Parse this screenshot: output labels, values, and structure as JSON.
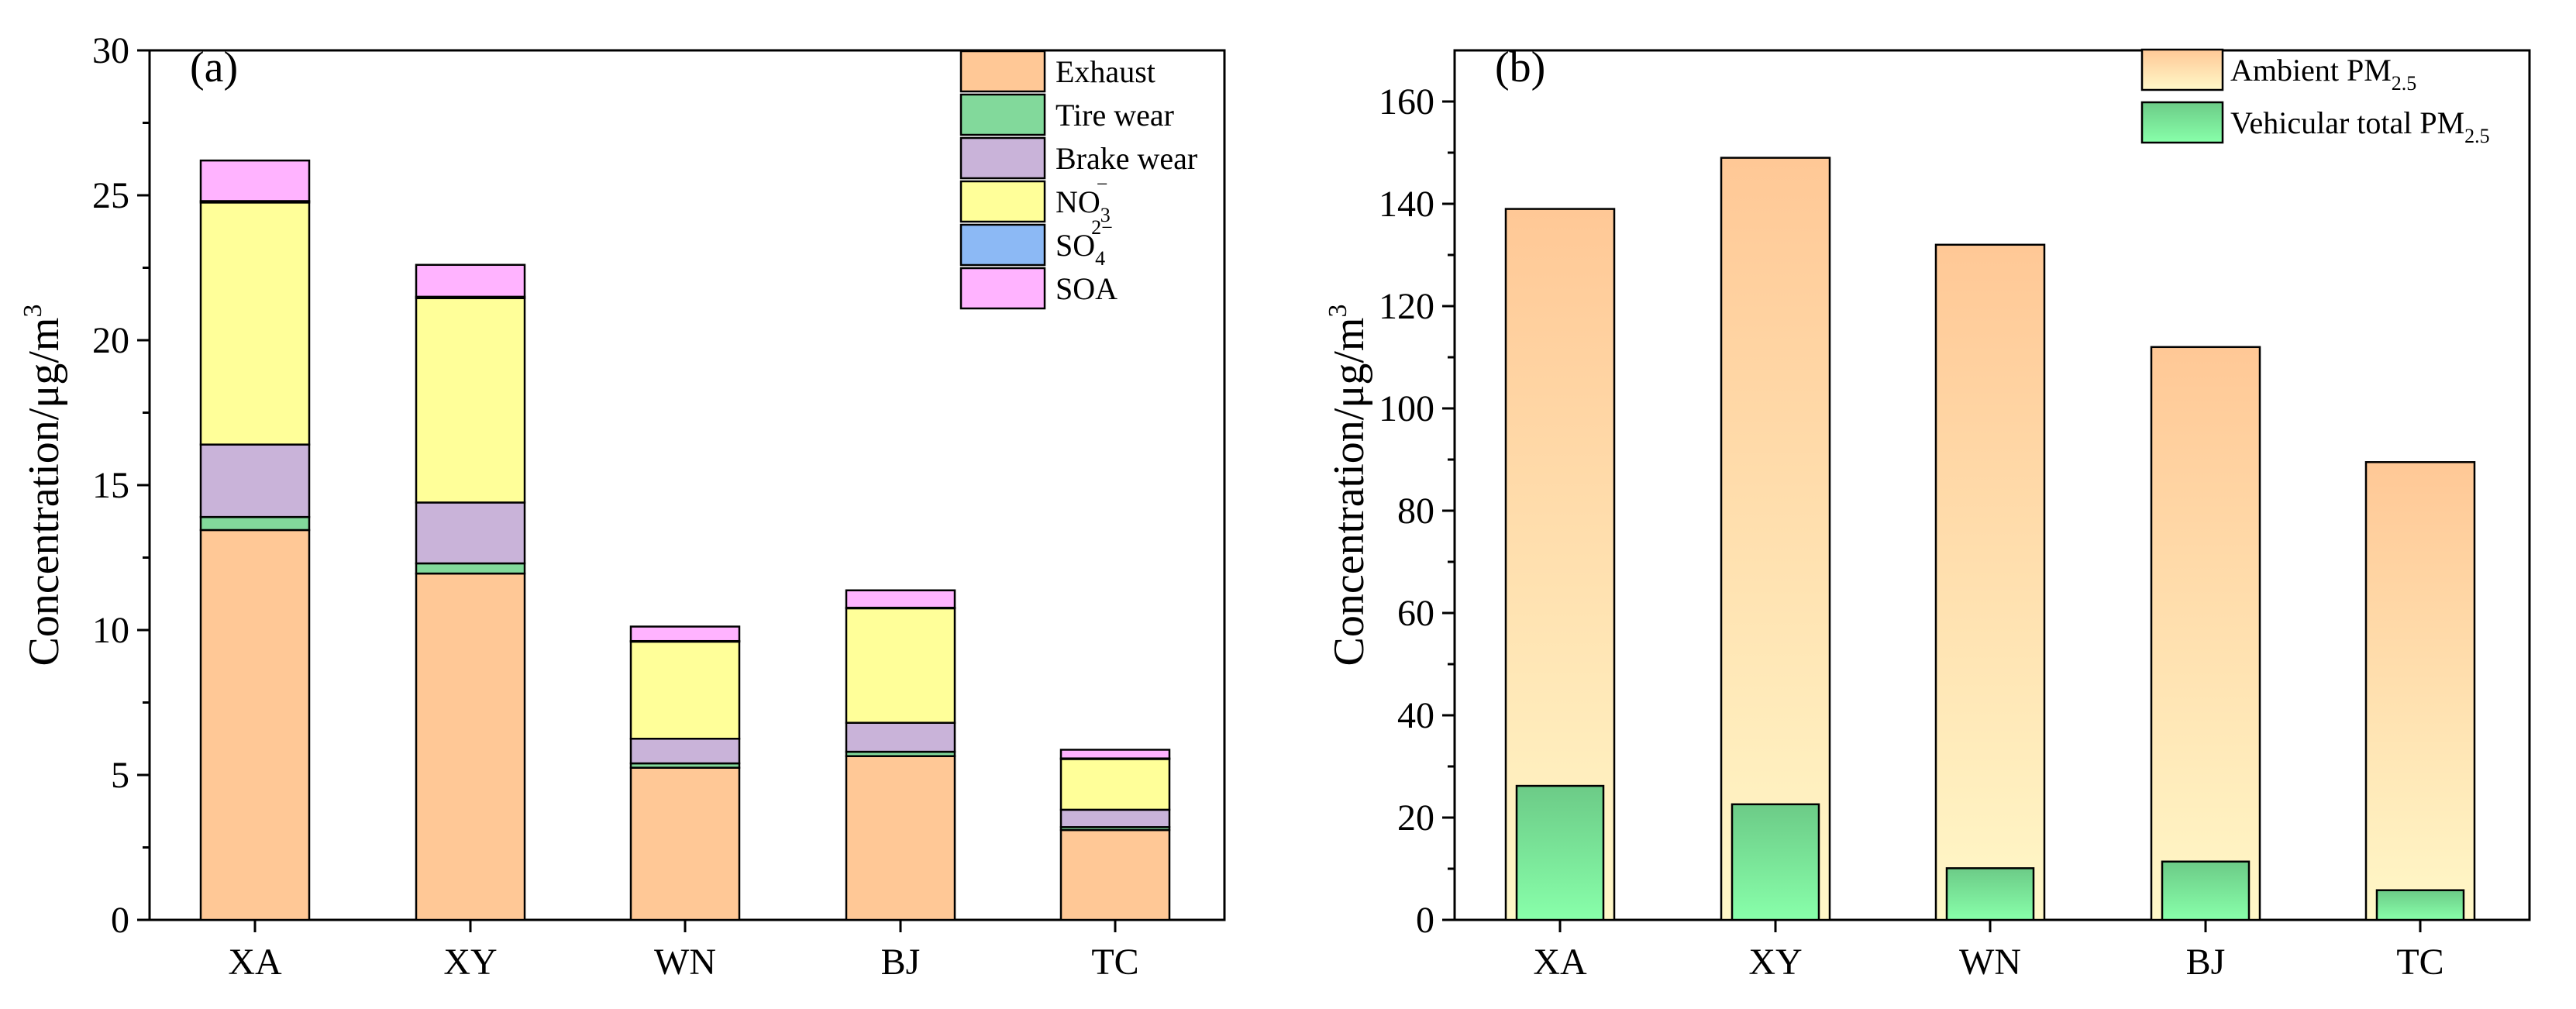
{
  "chart_data": [
    {
      "type": "bar",
      "stacked": true,
      "panel_label": "(a)",
      "categories": [
        "XA",
        "XY",
        "WN",
        "BJ",
        "TC"
      ],
      "ylabel": "Concentration/μg/m",
      "ylabel_superscript": "3",
      "ylim": [
        0,
        30
      ],
      "yticks": [
        0,
        5,
        10,
        15,
        20,
        25,
        30
      ],
      "legend_position": "top-right",
      "series": [
        {
          "name": "Exhaust",
          "label_main": "Exhaust",
          "label_sub": "",
          "label_sup": "",
          "color": "#FFC896",
          "values": [
            13.45,
            11.95,
            5.25,
            5.65,
            3.1
          ]
        },
        {
          "name": "Tire wear",
          "label_main": "Tire wear",
          "label_sub": "",
          "label_sup": "",
          "color": "#82D99B",
          "values": [
            0.45,
            0.35,
            0.15,
            0.15,
            0.1
          ]
        },
        {
          "name": "Brake wear",
          "label_main": "Brake wear",
          "label_sub": "",
          "label_sup": "",
          "color": "#C9B3D9",
          "values": [
            2.5,
            2.1,
            0.85,
            1.0,
            0.6
          ]
        },
        {
          "name": "NO3−",
          "label_main": "NO",
          "label_sub": "3",
          "label_sup": "−",
          "color": "#FFFF99",
          "values": [
            8.35,
            7.05,
            3.35,
            3.95,
            1.75
          ]
        },
        {
          "name": "SO42−",
          "label_main": "SO",
          "label_sub": "4",
          "label_sup": "2−",
          "color": "#8CB9F5",
          "values": [
            0.05,
            0.05,
            0.02,
            0.02,
            0.02
          ]
        },
        {
          "name": "SOA",
          "label_main": "SOA",
          "label_sub": "",
          "label_sup": "",
          "color": "#FFB3FF",
          "values": [
            1.4,
            1.1,
            0.5,
            0.6,
            0.3
          ]
        }
      ]
    },
    {
      "type": "bar",
      "overlay": true,
      "panel_label": "(b)",
      "categories": [
        "XA",
        "XY",
        "WN",
        "BJ",
        "TC"
      ],
      "ylabel": "Concentration/μg/m",
      "ylabel_superscript": "3",
      "ylim": [
        0,
        170
      ],
      "yticks": [
        0,
        20,
        40,
        60,
        80,
        100,
        120,
        140,
        160
      ],
      "legend_position": "top-right",
      "series": [
        {
          "name": "Ambient PM2.5",
          "label_main": "Ambient PM",
          "label_sub": "2.5",
          "label_sup": "",
          "gradient": [
            "#FFC896",
            "#FFF8C8"
          ],
          "values": [
            139,
            149,
            132,
            112,
            89.5
          ]
        },
        {
          "name": "Vehicular total PM2.5",
          "label_main": "Vehicular total PM",
          "label_sub": "2.5",
          "label_sup": "",
          "gradient": [
            "#6CCB87",
            "#88FFAA"
          ],
          "values": [
            26.2,
            22.6,
            10.1,
            11.4,
            5.8
          ]
        }
      ]
    }
  ]
}
